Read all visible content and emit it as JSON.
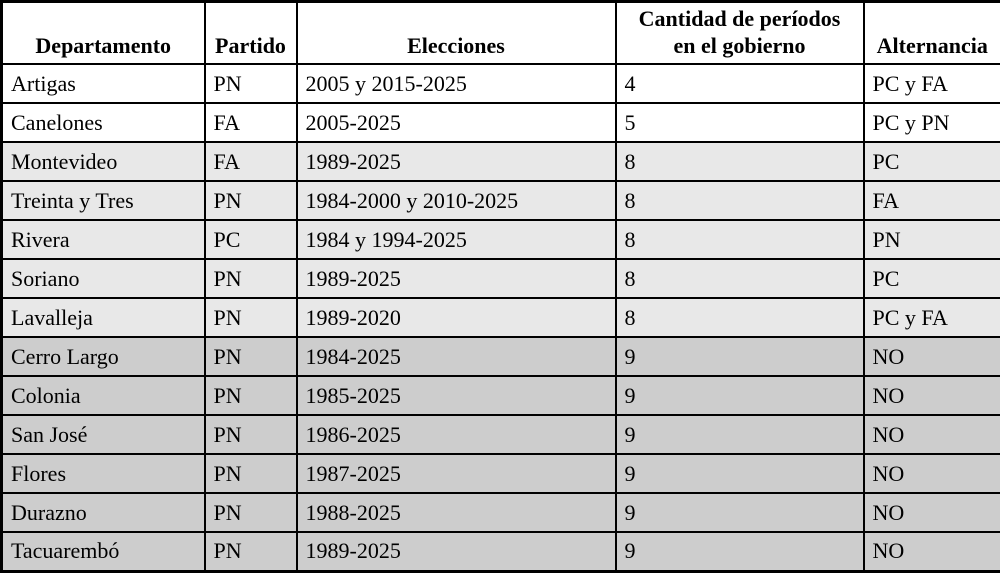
{
  "table": {
    "headers": [
      "Departamento",
      "Partido",
      "Elecciones",
      "Cantidad de períodos\nen el gobierno",
      "Alternancia"
    ],
    "fields": [
      "departamento",
      "partido",
      "elecciones",
      "periodos",
      "alternancia"
    ],
    "rows": [
      {
        "departamento": "Artigas",
        "partido": "PN",
        "elecciones": "2005 y 2015-2025",
        "periodos": "4",
        "alternancia": "PC y FA",
        "shade": "white"
      },
      {
        "departamento": "Canelones",
        "partido": "FA",
        "elecciones": "2005-2025",
        "periodos": "5",
        "alternancia": "PC y PN",
        "shade": "white"
      },
      {
        "departamento": "Montevideo",
        "partido": "FA",
        "elecciones": "1989-2025",
        "periodos": "8",
        "alternancia": "PC",
        "shade": "light"
      },
      {
        "departamento": "Treinta y Tres",
        "partido": "PN",
        "elecciones": "1984-2000 y 2010-2025",
        "periodos": "8",
        "alternancia": "FA",
        "shade": "light"
      },
      {
        "departamento": "Rivera",
        "partido": "PC",
        "elecciones": "1984 y 1994-2025",
        "periodos": "8",
        "alternancia": "PN",
        "shade": "light"
      },
      {
        "departamento": "Soriano",
        "partido": "PN",
        "elecciones": "1989-2025",
        "periodos": "8",
        "alternancia": "PC",
        "shade": "light"
      },
      {
        "departamento": "Lavalleja",
        "partido": "PN",
        "elecciones": "1989-2020",
        "periodos": "8",
        "alternancia": "PC y FA",
        "shade": "light"
      },
      {
        "departamento": "Cerro Largo",
        "partido": "PN",
        "elecciones": "1984-2025",
        "periodos": "9",
        "alternancia": "NO",
        "shade": "dark"
      },
      {
        "departamento": "Colonia",
        "partido": "PN",
        "elecciones": "1985-2025",
        "periodos": "9",
        "alternancia": "NO",
        "shade": "dark"
      },
      {
        "departamento": "San José",
        "partido": "PN",
        "elecciones": "1986-2025",
        "periodos": "9",
        "alternancia": "NO",
        "shade": "dark"
      },
      {
        "departamento": "Flores",
        "partido": "PN",
        "elecciones": "1987-2025",
        "periodos": "9",
        "alternancia": "NO",
        "shade": "dark"
      },
      {
        "departamento": "Durazno",
        "partido": "PN",
        "elecciones": "1988-2025",
        "periodos": "9",
        "alternancia": "NO",
        "shade": "dark"
      },
      {
        "departamento": "Tacuarembó",
        "partido": "PN",
        "elecciones": "1989-2025",
        "periodos": "9",
        "alternancia": "NO",
        "shade": "dark"
      }
    ]
  },
  "colors": {
    "border": "#000000",
    "text": "#000000",
    "header_bg": "#ffffff",
    "row_white": "#ffffff",
    "row_light": "#e8e8e8",
    "row_dark": "#cdcdcd"
  }
}
